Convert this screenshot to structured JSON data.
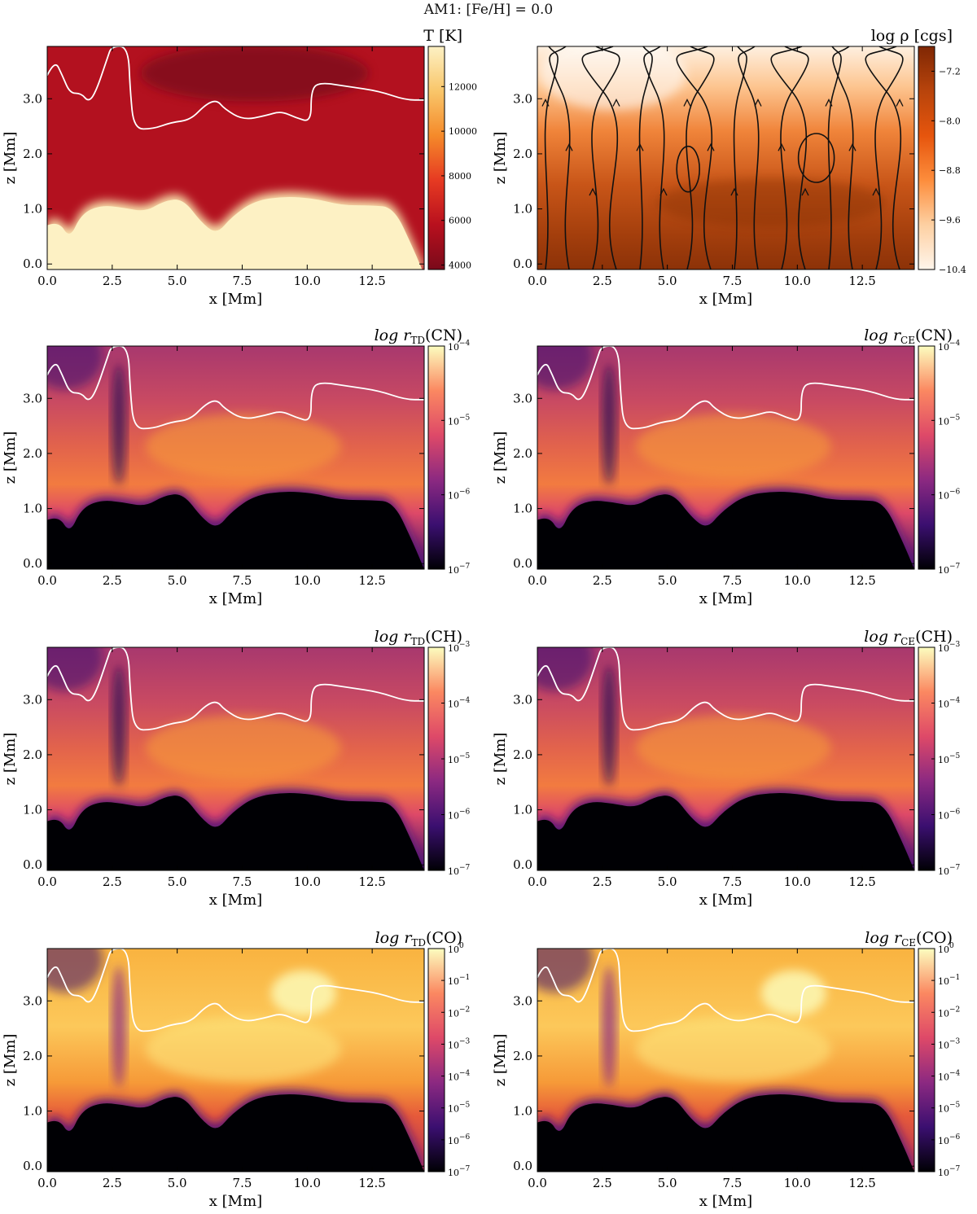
{
  "figure": {
    "suptitle": "AM1: [Fe/H] = 0.0"
  },
  "chart_data": [
    {
      "type": "heatmap",
      "id": "temperature",
      "title": "T [K]",
      "xlabel": "x [Mm]",
      "ylabel": "z [Mm]",
      "xlim": [
        0,
        14.5
      ],
      "ylim": [
        -0.1,
        3.95
      ],
      "xticks": [
        "0.0",
        "2.5",
        "5.0",
        "7.5",
        "10.0",
        "12.5"
      ],
      "yticks": [
        "0.0",
        "1.0",
        "2.0",
        "3.0"
      ],
      "colormap": [
        "#7a0a1a",
        "#b8101e",
        "#e63a22",
        "#f58a2a",
        "#f9c66a",
        "#fdf1c4"
      ],
      "colorbar": {
        "scale": "linear",
        "range": [
          3800,
          13800
        ],
        "ticks": [
          "4000",
          "6000",
          "8000",
          "10000",
          "12000"
        ]
      },
      "contour": true,
      "streamlines": false
    },
    {
      "type": "heatmap",
      "id": "density",
      "title": "log ρ [cgs]",
      "xlabel": "x [Mm]",
      "ylabel": "z [Mm]",
      "xlim": [
        0,
        14.5
      ],
      "ylim": [
        -0.1,
        3.95
      ],
      "xticks": [
        "0.0",
        "2.5",
        "5.0",
        "7.5",
        "10.0",
        "12.5"
      ],
      "yticks": [
        "0.0",
        "1.0",
        "2.0",
        "3.0"
      ],
      "colormap": [
        "#fff5eb",
        "#fdd0a2",
        "#fd8d3c",
        "#e6550d",
        "#b8440c",
        "#7f2704"
      ],
      "colorbar": {
        "scale": "linear",
        "range": [
          -10.4,
          -6.8
        ],
        "ticks": [
          "−7.2",
          "−8.0",
          "−8.8",
          "−9.6",
          "−10.4"
        ]
      },
      "contour": false,
      "streamlines": true
    },
    {
      "type": "heatmap",
      "id": "cn-td",
      "title_base": "log r",
      "title_sub": "TD",
      "title_species": "(CN)",
      "xlabel": "x [Mm]",
      "ylabel": "z [Mm]",
      "xlim": [
        0,
        14.5
      ],
      "ylim": [
        -0.1,
        3.95
      ],
      "xticks": [
        "0.0",
        "2.5",
        "5.0",
        "7.5",
        "10.0",
        "12.5"
      ],
      "yticks": [
        "0.0",
        "1.0",
        "2.0",
        "3.0"
      ],
      "colormap": [
        "#000004",
        "#3b0f70",
        "#8c2981",
        "#de4968",
        "#fb8861",
        "#fcfdbf"
      ],
      "colorbar": {
        "scale": "log",
        "exponents": [
          -7,
          -4
        ],
        "ticks": [
          "10",
          "10",
          "10",
          "10"
        ],
        "tick_exponents": [
          "−4",
          "−5",
          "−6",
          "−7"
        ]
      },
      "contour": true,
      "streamlines": false
    },
    {
      "type": "heatmap",
      "id": "cn-ce",
      "title_base": "log r",
      "title_sub": "CE",
      "title_species": "(CN)",
      "xlabel": "x [Mm]",
      "ylabel": "z [Mm]",
      "xlim": [
        0,
        14.5
      ],
      "ylim": [
        -0.1,
        3.95
      ],
      "xticks": [
        "0.0",
        "2.5",
        "5.0",
        "7.5",
        "10.0",
        "12.5"
      ],
      "yticks": [
        "0.0",
        "1.0",
        "2.0",
        "3.0"
      ],
      "colormap": [
        "#000004",
        "#3b0f70",
        "#8c2981",
        "#de4968",
        "#fb8861",
        "#fcfdbf"
      ],
      "colorbar": {
        "scale": "log",
        "exponents": [
          -7,
          -4
        ],
        "ticks": [
          "10",
          "10",
          "10",
          "10"
        ],
        "tick_exponents": [
          "−4",
          "−5",
          "−6",
          "−7"
        ]
      },
      "contour": true,
      "streamlines": false
    },
    {
      "type": "heatmap",
      "id": "ch-td",
      "title_base": "log r",
      "title_sub": "TD",
      "title_species": "(CH)",
      "xlabel": "x [Mm]",
      "ylabel": "z [Mm]",
      "xlim": [
        0,
        14.5
      ],
      "ylim": [
        -0.1,
        3.95
      ],
      "xticks": [
        "0.0",
        "2.5",
        "5.0",
        "7.5",
        "10.0",
        "12.5"
      ],
      "yticks": [
        "0.0",
        "1.0",
        "2.0",
        "3.0"
      ],
      "colormap": [
        "#000004",
        "#3b0f70",
        "#8c2981",
        "#de4968",
        "#fb8861",
        "#fcfdbf"
      ],
      "colorbar": {
        "scale": "log",
        "exponents": [
          -7,
          -3
        ],
        "ticks": [
          "10",
          "10",
          "10",
          "10",
          "10"
        ],
        "tick_exponents": [
          "−3",
          "−4",
          "−5",
          "−6",
          "−7"
        ]
      },
      "contour": true,
      "streamlines": false
    },
    {
      "type": "heatmap",
      "id": "ch-ce",
      "title_base": "log r",
      "title_sub": "CE",
      "title_species": "(CH)",
      "xlabel": "x [Mm]",
      "ylabel": "z [Mm]",
      "xlim": [
        0,
        14.5
      ],
      "ylim": [
        -0.1,
        3.95
      ],
      "xticks": [
        "0.0",
        "2.5",
        "5.0",
        "7.5",
        "10.0",
        "12.5"
      ],
      "yticks": [
        "0.0",
        "1.0",
        "2.0",
        "3.0"
      ],
      "colormap": [
        "#000004",
        "#3b0f70",
        "#8c2981",
        "#de4968",
        "#fb8861",
        "#fcfdbf"
      ],
      "colorbar": {
        "scale": "log",
        "exponents": [
          -7,
          -3
        ],
        "ticks": [
          "10",
          "10",
          "10",
          "10",
          "10"
        ],
        "tick_exponents": [
          "−3",
          "−4",
          "−5",
          "−6",
          "−7"
        ]
      },
      "contour": true,
      "streamlines": false
    },
    {
      "type": "heatmap",
      "id": "co-td",
      "title_base": "log r",
      "title_sub": "TD",
      "title_species": "(CO)",
      "xlabel": "x [Mm]",
      "ylabel": "z [Mm]",
      "xlim": [
        0,
        14.5
      ],
      "ylim": [
        -0.1,
        3.95
      ],
      "xticks": [
        "0.0",
        "2.5",
        "5.0",
        "7.5",
        "10.0",
        "12.5"
      ],
      "yticks": [
        "0.0",
        "1.0",
        "2.0",
        "3.0"
      ],
      "colormap": [
        "#000004",
        "#3b0f70",
        "#8c2981",
        "#de4968",
        "#fb8861",
        "#fcfdbf"
      ],
      "colorbar": {
        "scale": "log",
        "exponents": [
          -7,
          0
        ],
        "ticks": [
          "10",
          "10",
          "10",
          "10",
          "10",
          "10",
          "10",
          "10"
        ],
        "tick_exponents": [
          "0",
          "−1",
          "−2",
          "−3",
          "−4",
          "−5",
          "−6",
          "−7"
        ]
      },
      "contour": true,
      "streamlines": false
    },
    {
      "type": "heatmap",
      "id": "co-ce",
      "title_base": "log r",
      "title_sub": "CE",
      "title_species": "(CO)",
      "xlabel": "x [Mm]",
      "ylabel": "z [Mm]",
      "xlim": [
        0,
        14.5
      ],
      "ylim": [
        -0.1,
        3.95
      ],
      "xticks": [
        "0.0",
        "2.5",
        "5.0",
        "7.5",
        "10.0",
        "12.5"
      ],
      "yticks": [
        "0.0",
        "1.0",
        "2.0",
        "3.0"
      ],
      "colormap": [
        "#000004",
        "#3b0f70",
        "#8c2981",
        "#de4968",
        "#fb8861",
        "#fcfdbf"
      ],
      "colorbar": {
        "scale": "log",
        "exponents": [
          -7,
          0
        ],
        "ticks": [
          "10",
          "10",
          "10",
          "10",
          "10",
          "10",
          "10",
          "10"
        ],
        "tick_exponents": [
          "0",
          "−1",
          "−2",
          "−3",
          "−4",
          "−5",
          "−6",
          "−7"
        ]
      },
      "contour": true,
      "streamlines": false
    }
  ]
}
